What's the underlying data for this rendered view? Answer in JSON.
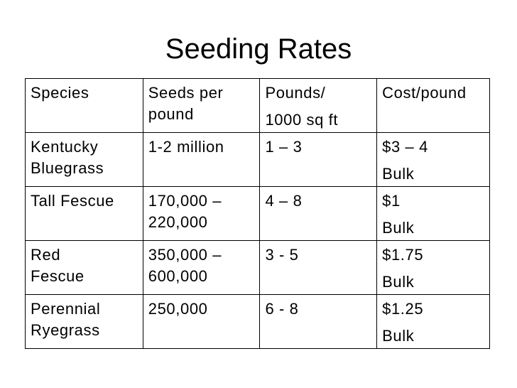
{
  "slide": {
    "title": "Seeding Rates"
  },
  "table": {
    "rows": [
      [
        [
          "Species"
        ],
        [
          "Seeds per",
          "pound"
        ],
        [
          "Pounds/",
          "1000 sq ft"
        ],
        [
          "Cost/pound"
        ]
      ],
      [
        [
          "Kentucky",
          "Bluegrass"
        ],
        [
          "1-2 million"
        ],
        [
          "1 – 3"
        ],
        [
          "$3 – 4",
          "Bulk"
        ]
      ],
      [
        [
          "Tall Fescue"
        ],
        [
          "170,000 –",
          "220,000"
        ],
        [
          "4 – 8"
        ],
        [
          "$1",
          "Bulk"
        ]
      ],
      [
        [
          "Red",
          "Fescue"
        ],
        [
          "350,000 –",
          "600,000"
        ],
        [
          "3 - 5"
        ],
        [
          "$1.75",
          "Bulk"
        ]
      ],
      [
        [
          "Perennial",
          "Ryegrass"
        ],
        [
          "250,000"
        ],
        [
          "6 - 8"
        ],
        [
          "$1.25",
          "Bulk"
        ]
      ]
    ]
  }
}
